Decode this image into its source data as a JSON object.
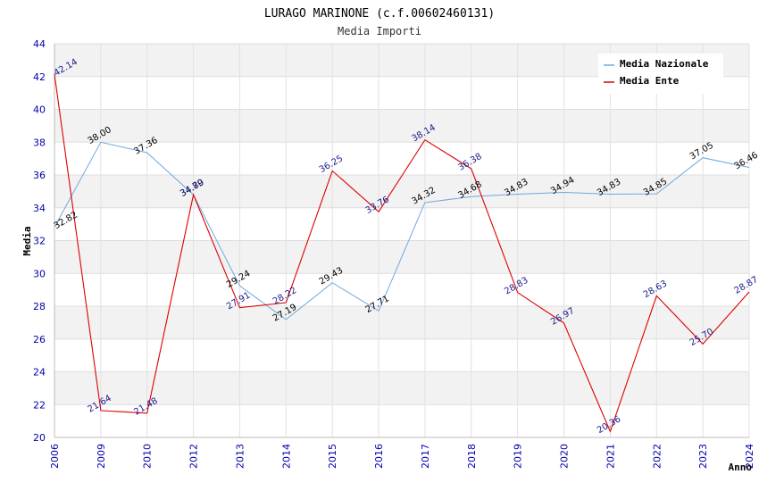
{
  "chart_data": {
    "type": "line",
    "title": "LURAGO MARINONE (c.f.00602460131)",
    "subtitle": "Media Importi",
    "xlabel": "Anno",
    "ylabel": "Media",
    "ylim": [
      20,
      44
    ],
    "yticks": [
      20,
      22,
      24,
      26,
      28,
      30,
      32,
      34,
      36,
      38,
      40,
      42,
      44
    ],
    "categories": [
      "2006",
      "2009",
      "2010",
      "2012",
      "2013",
      "2014",
      "2015",
      "2016",
      "2017",
      "2018",
      "2019",
      "2020",
      "2021",
      "2022",
      "2023",
      "2024"
    ],
    "legend_position": "top-right",
    "grid": true,
    "series": [
      {
        "name": "Media Nazionale",
        "color": "#6fa8dc",
        "values": [
          32.82,
          38.0,
          37.36,
          34.79,
          29.24,
          27.19,
          29.43,
          27.71,
          34.32,
          34.68,
          34.83,
          34.94,
          34.83,
          34.85,
          37.05,
          36.46
        ],
        "labels": [
          "32.82",
          "38.00",
          "37.36",
          "34.79",
          "29.24",
          "27.19",
          "29.43",
          "27.71",
          "34.32",
          "34.68",
          "34.83",
          "34.94",
          "34.83",
          "34.85",
          "37.05",
          "36.46"
        ]
      },
      {
        "name": "Media Ente",
        "color": "#dd0000",
        "values": [
          42.14,
          21.64,
          21.48,
          34.8,
          27.91,
          28.22,
          36.25,
          33.76,
          38.14,
          36.38,
          28.83,
          26.97,
          20.36,
          28.63,
          25.7,
          28.87
        ],
        "labels": [
          "42.14",
          "21.64",
          "21.48",
          "34.80",
          "27.91",
          "28.22",
          "36.25",
          "33.76",
          "38.14",
          "36.38",
          "28.83",
          "26.97",
          "20.36",
          "28.63",
          "25.70",
          "28.87"
        ]
      }
    ]
  }
}
